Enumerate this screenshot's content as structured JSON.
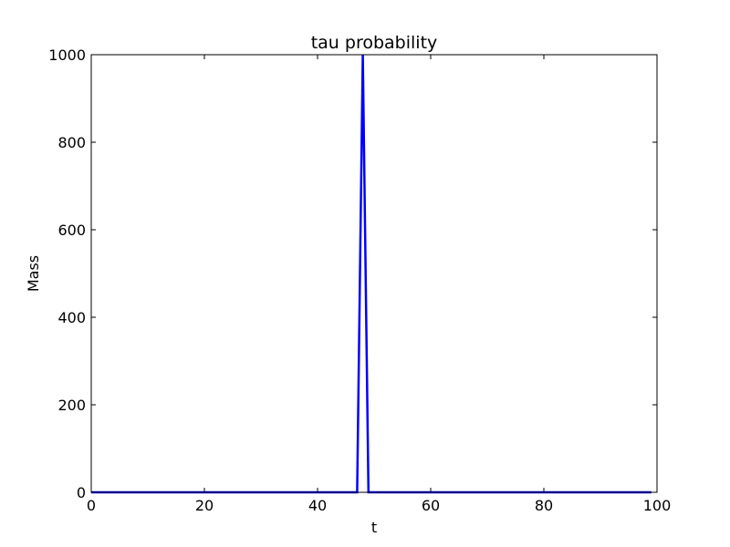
{
  "chart_data": {
    "type": "line",
    "title": "tau probability",
    "xlabel": "t",
    "ylabel": "Mass",
    "xlim": [
      0,
      100
    ],
    "ylim": [
      0,
      1000
    ],
    "xticks": [
      0,
      20,
      40,
      60,
      80,
      100
    ],
    "yticks": [
      0,
      200,
      400,
      600,
      800,
      1000
    ],
    "grid": false,
    "series": [
      {
        "color": "#0000ff",
        "x": [
          0,
          47,
          48,
          49,
          99
        ],
        "y": [
          0,
          0,
          1000,
          0,
          0
        ]
      }
    ]
  }
}
